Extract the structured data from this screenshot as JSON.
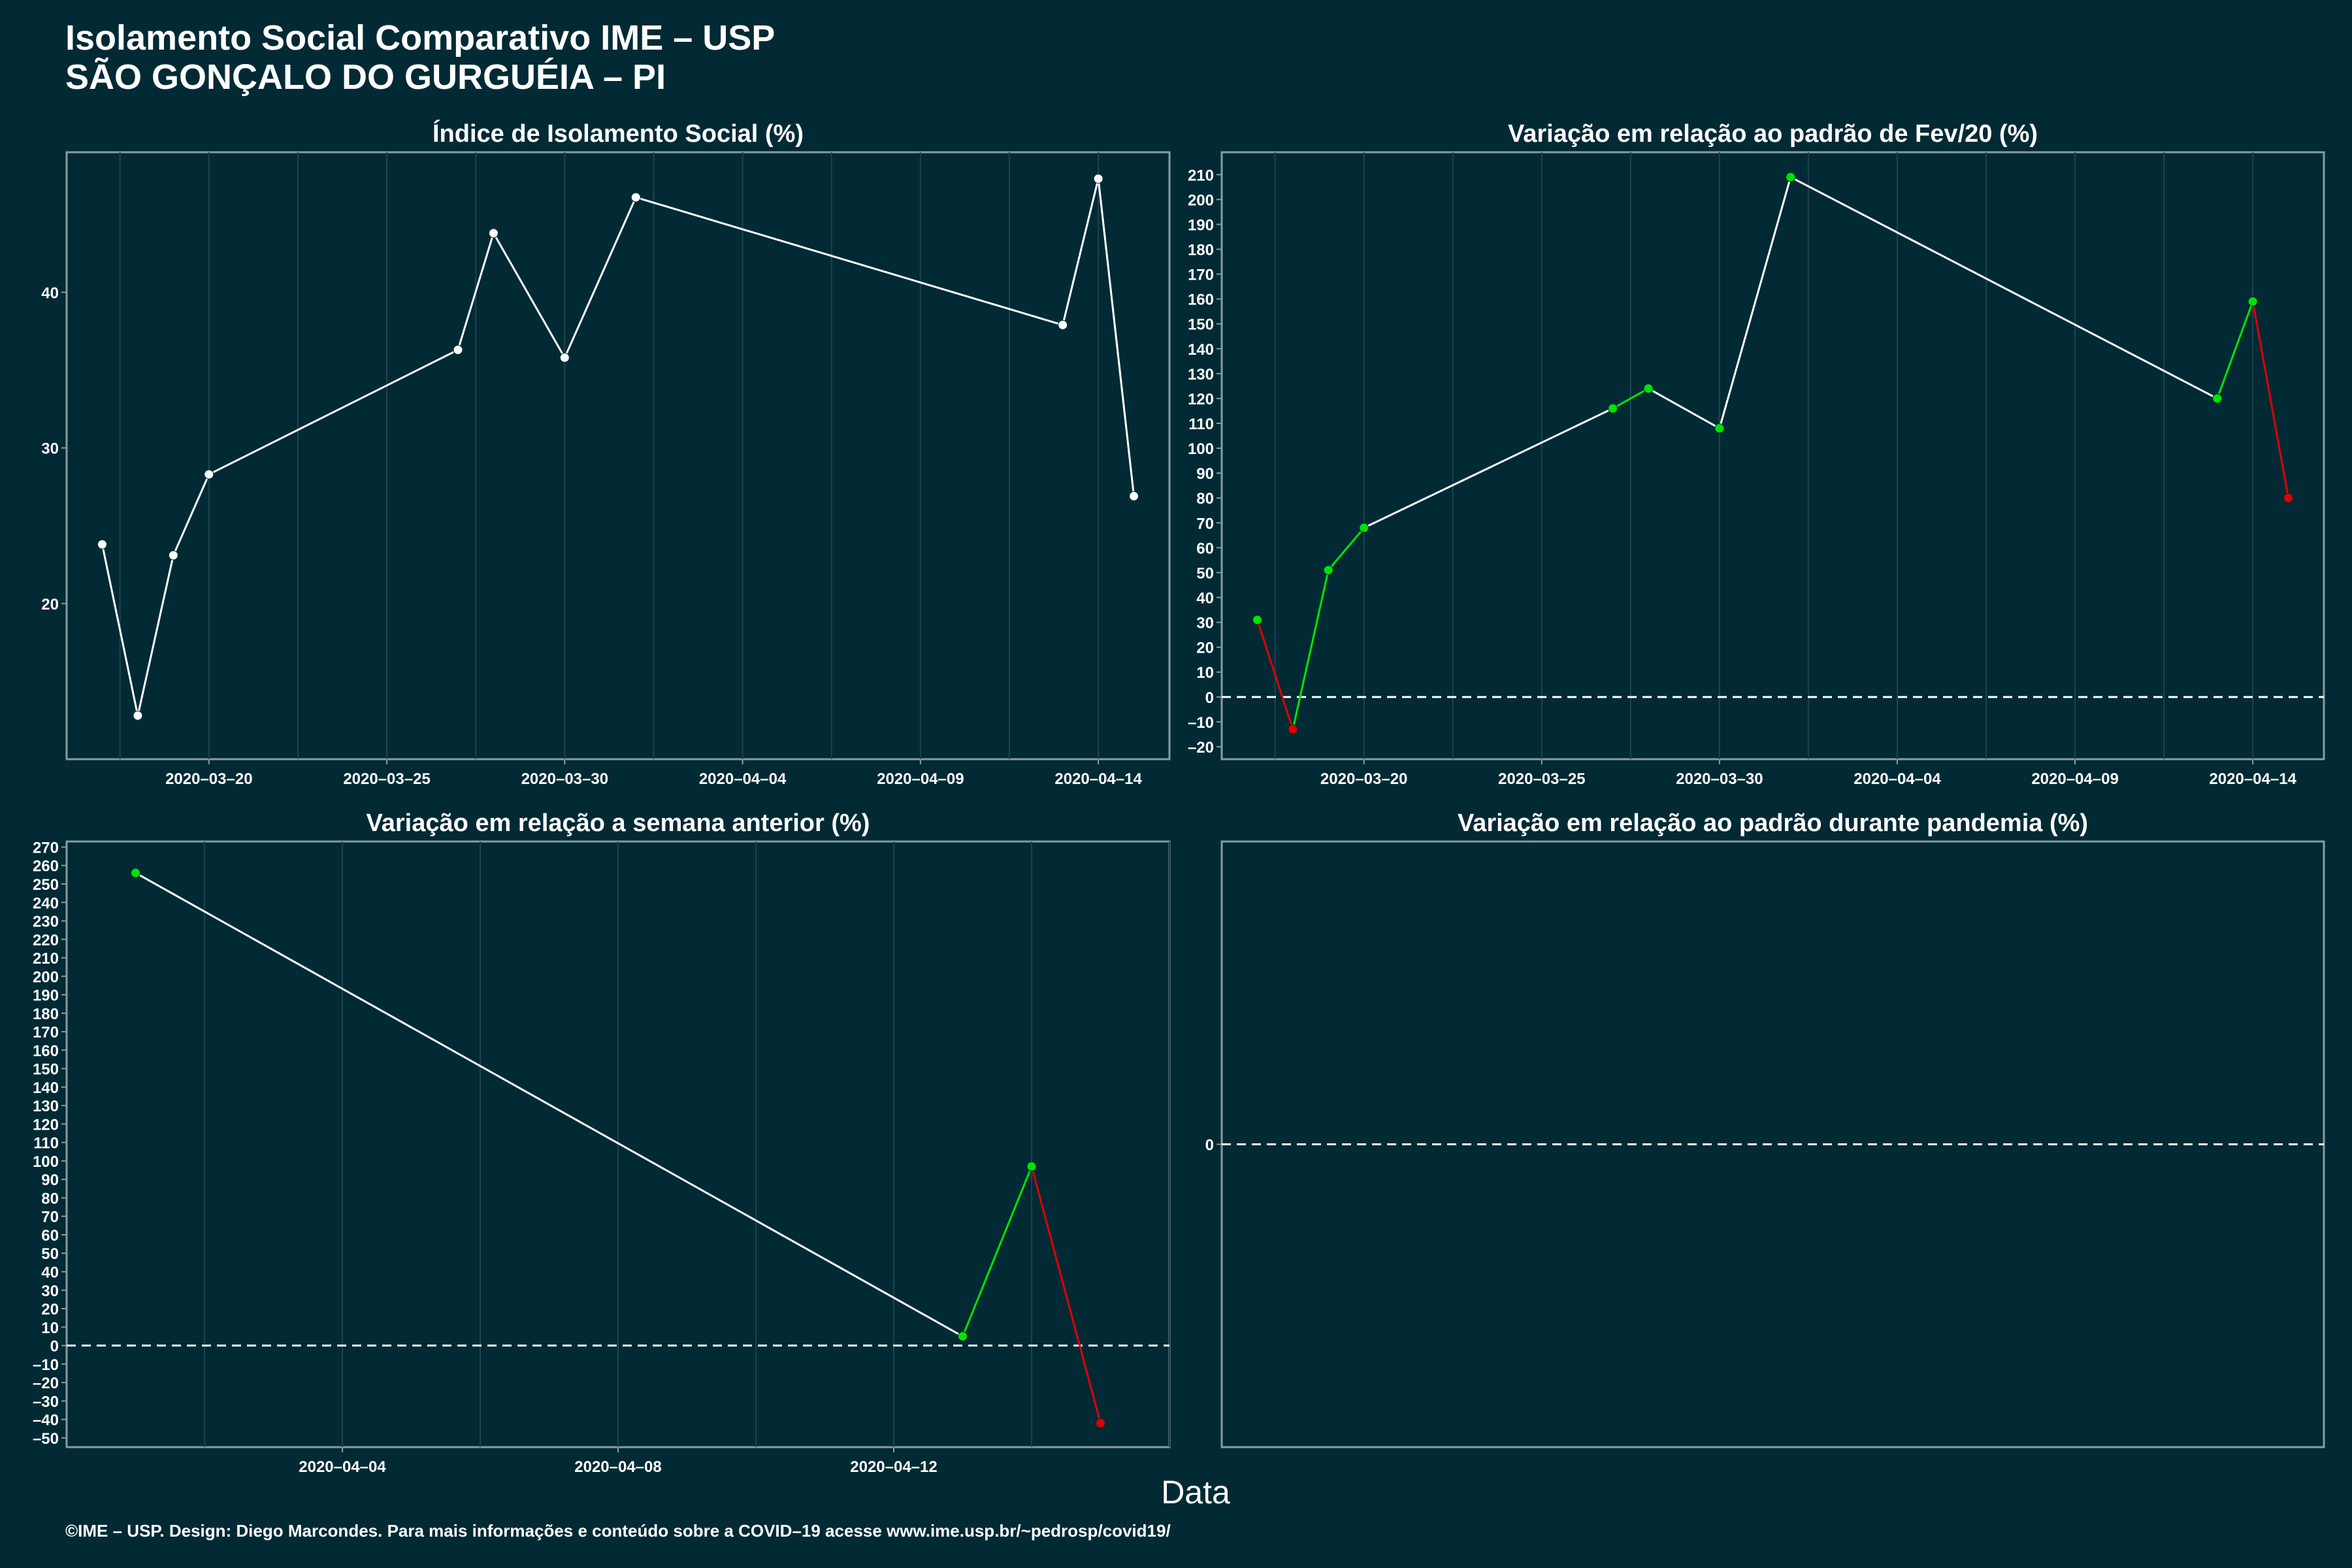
{
  "title": "Isolamento Social Comparativo IME – USP",
  "subtitle": "SÃO GONÇALO DO GURGUÉIA – PI",
  "xlabel": "Data",
  "footer": "©IME – USP. Design: Diego Marcondes. Para mais informações e conteúdo sobre a COVID–19 acesse www.ime.usp.br/~pedrosp/covid19/",
  "colors": {
    "background": "#012a35",
    "line": "#ffffff",
    "up": "#00e400",
    "down": "#e00000",
    "frame": "#8a9ca0"
  },
  "chart_data": [
    {
      "type": "line",
      "title": "Índice de Isolamento Social (%)",
      "x": [
        "2020-03-17",
        "2020-03-18",
        "2020-03-19",
        "2020-03-20",
        "2020-03-27",
        "2020-03-28",
        "2020-03-30",
        "2020-04-01",
        "2020-04-13",
        "2020-04-14",
        "2020-04-15"
      ],
      "y": [
        23.8,
        12.8,
        23.1,
        28.3,
        36.3,
        43.8,
        35.8,
        46.1,
        37.9,
        47.3,
        26.9
      ],
      "xlim": [
        "2020-03-16",
        "2020-04-16"
      ],
      "ylim": [
        10,
        49
      ],
      "xticks": [
        "2020-03-20",
        "2020-03-25",
        "2020-03-30",
        "2020-04-04",
        "2020-04-09",
        "2020-04-14"
      ],
      "yticks": [
        20,
        30,
        40
      ],
      "zero_line": false,
      "point_colors": "white"
    },
    {
      "type": "line",
      "title": "Variação em relação ao padrão de Fev/20 (%)",
      "x": [
        "2020-03-17",
        "2020-03-18",
        "2020-03-19",
        "2020-03-20",
        "2020-03-27",
        "2020-03-28",
        "2020-03-30",
        "2020-04-01",
        "2020-04-13",
        "2020-04-14",
        "2020-04-15"
      ],
      "y": [
        31,
        -13,
        51,
        68,
        116,
        124,
        108,
        209,
        120,
        159,
        80
      ],
      "xlim": [
        "2020-03-16",
        "2020-04-16"
      ],
      "ylim": [
        -25,
        219
      ],
      "xticks": [
        "2020-03-20",
        "2020-03-25",
        "2020-03-30",
        "2020-04-04",
        "2020-04-09",
        "2020-04-14"
      ],
      "yticks": [
        -20,
        -10,
        0,
        10,
        20,
        30,
        40,
        50,
        60,
        70,
        80,
        90,
        100,
        110,
        120,
        130,
        140,
        150,
        160,
        170,
        180,
        190,
        200,
        210
      ],
      "zero_line": true,
      "point_colors": "signed"
    },
    {
      "type": "line",
      "title": "Variação em relação a semana anterior (%)",
      "x": [
        "2020-04-01",
        "2020-04-13",
        "2020-04-14",
        "2020-04-15"
      ],
      "y": [
        256,
        5,
        97,
        -42
      ],
      "xlim": [
        "2020-03-31",
        "2020-04-16"
      ],
      "ylim": [
        -55,
        273
      ],
      "xticks": [
        "2020-04-04",
        "2020-04-08",
        "2020-04-12"
      ],
      "yticks": [
        -50,
        -40,
        -30,
        -20,
        -10,
        0,
        10,
        20,
        30,
        40,
        50,
        60,
        70,
        80,
        90,
        100,
        110,
        120,
        130,
        140,
        150,
        160,
        170,
        180,
        190,
        200,
        210,
        220,
        230,
        240,
        250,
        260,
        270
      ],
      "zero_line": true,
      "point_colors": "signed"
    },
    {
      "type": "line",
      "title": "Variação em relação ao padrão durante pandemia (%)",
      "x": [],
      "y": [],
      "ylim": [
        -1,
        1
      ],
      "xticks": [],
      "yticks": [
        0
      ],
      "zero_line": true,
      "point_colors": "signed"
    }
  ]
}
